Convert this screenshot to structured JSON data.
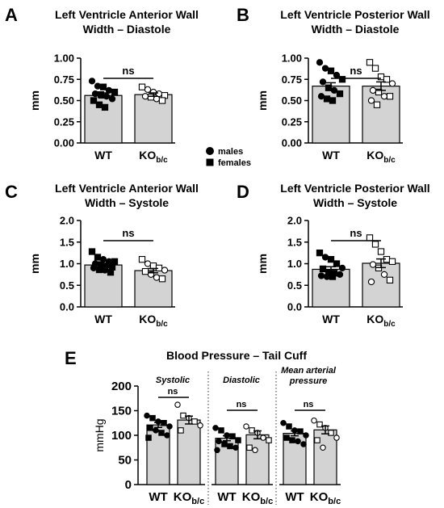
{
  "legend": {
    "males": "males",
    "females": "females"
  },
  "chart_data": [
    {
      "id": "A",
      "type": "bar",
      "panel_letter": "A",
      "title_lines": [
        "Left Ventricle Anterior Wall",
        "Width – Diastole"
      ],
      "ylabel": "mm",
      "ylim": [
        0,
        1.0
      ],
      "yticks": [
        {
          "v": 0,
          "t": "0.00"
        },
        {
          "v": 0.25,
          "t": "0.25"
        },
        {
          "v": 0.5,
          "t": "0.50"
        },
        {
          "v": 0.75,
          "t": "0.75"
        },
        {
          "v": 1.0,
          "t": "1.00"
        }
      ],
      "groups": [
        {
          "label": "WT",
          "sub": "",
          "mean": 0.56,
          "sem": 0.03,
          "filled": true,
          "males": [
            0.73,
            0.67,
            0.62,
            0.58,
            0.55,
            0.52
          ],
          "females": [
            0.66,
            0.6,
            0.57,
            0.5,
            0.45,
            0.42
          ]
        },
        {
          "label": "KO",
          "sub": "b/c",
          "mean": 0.57,
          "sem": 0.02,
          "filled": false,
          "males": [
            0.63,
            0.6,
            0.58,
            0.55,
            0.52
          ],
          "females": [
            0.66,
            0.56,
            0.54,
            0.5
          ]
        }
      ],
      "significance": "ns"
    },
    {
      "id": "B",
      "type": "bar",
      "panel_letter": "B",
      "title_lines": [
        "Left Ventricle Posterior Wall",
        "Width – Diastole"
      ],
      "ylabel": "mm",
      "ylim": [
        0,
        1.0
      ],
      "yticks": [
        {
          "v": 0,
          "t": "0.00"
        },
        {
          "v": 0.25,
          "t": "0.25"
        },
        {
          "v": 0.5,
          "t": "0.50"
        },
        {
          "v": 0.75,
          "t": "0.75"
        },
        {
          "v": 1.0,
          "t": "1.00"
        }
      ],
      "groups": [
        {
          "label": "WT",
          "sub": "",
          "mean": 0.67,
          "sem": 0.04,
          "filled": true,
          "males": [
            0.95,
            0.88,
            0.8,
            0.72,
            0.62,
            0.55
          ],
          "females": [
            0.85,
            0.75,
            0.65,
            0.58,
            0.52,
            0.5
          ]
        },
        {
          "label": "KO",
          "sub": "b/c",
          "mean": 0.67,
          "sem": 0.05,
          "filled": false,
          "males": [
            0.7,
            0.62,
            0.55,
            0.5
          ],
          "females": [
            0.95,
            0.88,
            0.78,
            0.75,
            0.6,
            0.55,
            0.45
          ]
        }
      ],
      "significance": "ns"
    },
    {
      "id": "C",
      "type": "bar",
      "panel_letter": "C",
      "title_lines": [
        "Left Ventricle Anterior Wall",
        "Width – Systole"
      ],
      "ylabel": "mm",
      "ylim": [
        0,
        2.0
      ],
      "yticks": [
        {
          "v": 0,
          "t": "0.0"
        },
        {
          "v": 0.5,
          "t": "0.5"
        },
        {
          "v": 1.0,
          "t": "1.0"
        },
        {
          "v": 1.5,
          "t": "1.5"
        },
        {
          "v": 2.0,
          "t": "2.0"
        }
      ],
      "groups": [
        {
          "label": "WT",
          "sub": "",
          "mean": 0.97,
          "sem": 0.04,
          "filled": true,
          "males": [
            1.1,
            1.05,
            1.0,
            0.95,
            0.9,
            0.85
          ],
          "females": [
            1.28,
            1.15,
            1.05,
            0.98,
            0.92,
            0.86,
            0.8
          ]
        },
        {
          "label": "KO",
          "sub": "b/c",
          "mean": 0.84,
          "sem": 0.05,
          "filled": false,
          "males": [
            1.0,
            0.85,
            0.75,
            0.68
          ],
          "females": [
            1.1,
            0.95,
            0.9,
            0.82,
            0.65
          ]
        }
      ],
      "significance": "ns"
    },
    {
      "id": "D",
      "type": "bar",
      "panel_letter": "D",
      "title_lines": [
        "Left Ventricle Posterior Wall",
        "Width – Systole"
      ],
      "ylabel": "mm",
      "ylim": [
        0,
        2.0
      ],
      "yticks": [
        {
          "v": 0,
          "t": "0.0"
        },
        {
          "v": 0.5,
          "t": "0.5"
        },
        {
          "v": 1.0,
          "t": "1.0"
        },
        {
          "v": 1.5,
          "t": "1.5"
        },
        {
          "v": 2.0,
          "t": "2.0"
        }
      ],
      "groups": [
        {
          "label": "WT",
          "sub": "",
          "mean": 0.87,
          "sem": 0.06,
          "filled": true,
          "males": [
            1.15,
            0.9,
            0.8,
            0.75,
            0.7,
            0.72
          ],
          "females": [
            1.25,
            1.1,
            1.0,
            0.88,
            0.78,
            0.7
          ]
        },
        {
          "label": "KO",
          "sub": "b/c",
          "mean": 1.01,
          "sem": 0.1,
          "filled": false,
          "males": [
            0.98,
            0.75,
            0.58
          ],
          "females": [
            1.6,
            1.45,
            1.28,
            1.1,
            1.05,
            0.9,
            0.62
          ]
        }
      ],
      "significance": "ns"
    }
  ],
  "panel_e": {
    "letter": "E",
    "title": "Blood Pressure – Tail Cuff",
    "ylabel": "mmHg",
    "ylim": [
      0,
      200
    ],
    "yticks": [
      0,
      50,
      100,
      150,
      200
    ],
    "significance": "ns",
    "sections": [
      {
        "title_lines": [
          "Systolic"
        ],
        "groups": [
          {
            "label": "WT",
            "sub": "",
            "mean": 121,
            "sem": 5,
            "filled": true,
            "males": [
              140,
              128,
              118,
              110,
              100
            ],
            "females": [
              135,
              125,
              115,
              105,
              95
            ]
          },
          {
            "label": "KO",
            "sub": "b/c",
            "mean": 131,
            "sem": 8,
            "filled": false,
            "males": [
              162,
              135,
              120
            ],
            "females": [
              140,
              128,
              110
            ]
          }
        ]
      },
      {
        "title_lines": [
          "Diastolic"
        ],
        "groups": [
          {
            "label": "WT",
            "sub": "",
            "mean": 94,
            "sem": 5,
            "filled": true,
            "males": [
              115,
              100,
              88,
              75,
              70
            ],
            "females": [
              110,
              98,
              90,
              82,
              78
            ]
          },
          {
            "label": "KO",
            "sub": "b/c",
            "mean": 101,
            "sem": 8,
            "filled": false,
            "males": [
              118,
              105,
              95,
              70
            ],
            "females": [
              110,
              90,
              75
            ]
          }
        ]
      },
      {
        "title_lines": [
          "Mean arterial",
          "pressure"
        ],
        "groups": [
          {
            "label": "WT",
            "sub": "",
            "mean": 104,
            "sem": 5,
            "filled": true,
            "males": [
              125,
              110,
              100,
              88,
              82
            ],
            "females": [
              118,
              108,
              95,
              90
            ]
          },
          {
            "label": "KO",
            "sub": "b/c",
            "mean": 111,
            "sem": 8,
            "filled": false,
            "males": [
              130,
              115,
              95,
              75
            ],
            "females": [
              122,
              105,
              90
            ]
          }
        ]
      }
    ]
  }
}
